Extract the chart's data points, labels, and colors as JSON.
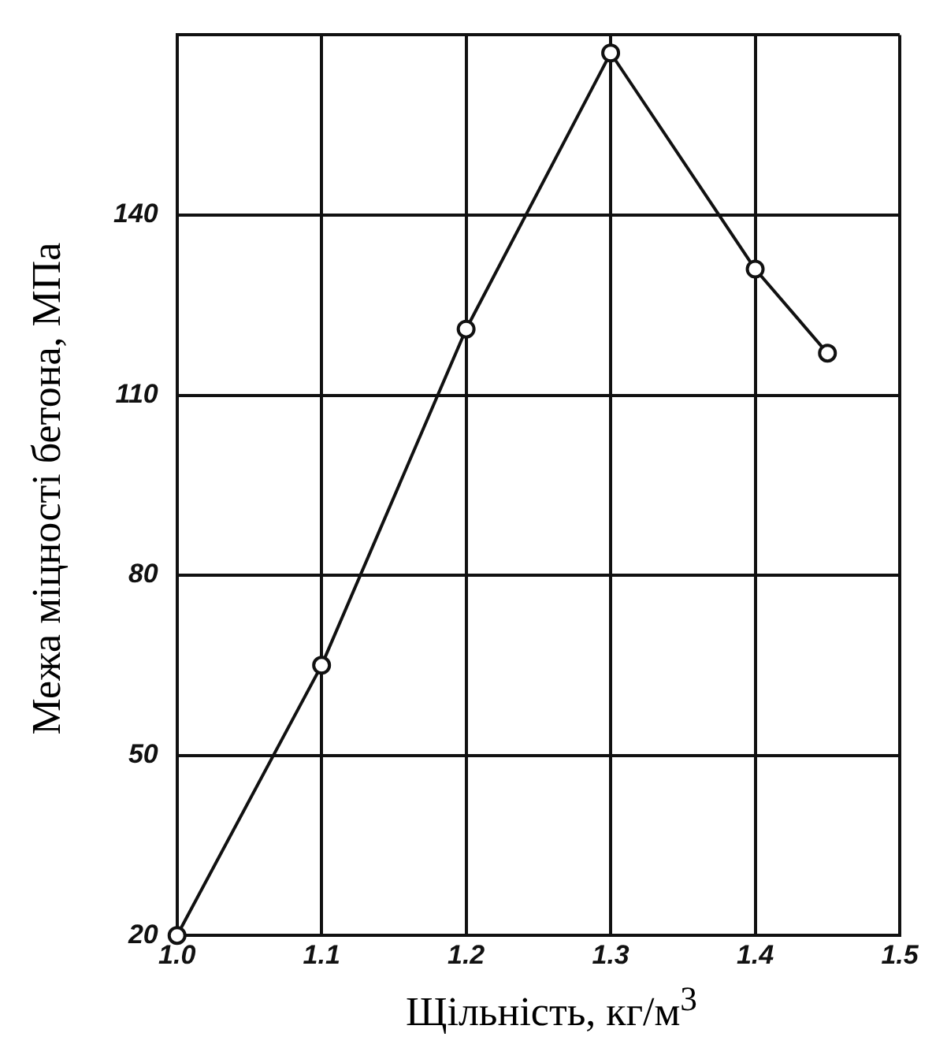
{
  "chart_data": {
    "type": "line",
    "xlabel": "Щільність, кг/м$^{3}$",
    "ylabel": "Межа міцності бетона, МПа",
    "x": [
      1.0,
      1.1,
      1.2,
      1.3,
      1.4,
      1.45
    ],
    "series": [
      {
        "color": "#111111",
        "values": [
          20,
          65,
          121,
          167,
          131,
          117
        ]
      }
    ],
    "xlim": [
      1.0,
      1.5
    ],
    "xticks": [
      {
        "value": 1.0,
        "label": "1.0"
      },
      1.1,
      1.2,
      1.3,
      1.4,
      1.5
    ],
    "ylim": [
      20,
      170
    ],
    "yticks": [
      20,
      50,
      80,
      110,
      140,
      {
        "value": 170,
        "label": null
      }
    ],
    "grid": true,
    "legend": false,
    "marker": "circle",
    "line_style": "solid"
  }
}
